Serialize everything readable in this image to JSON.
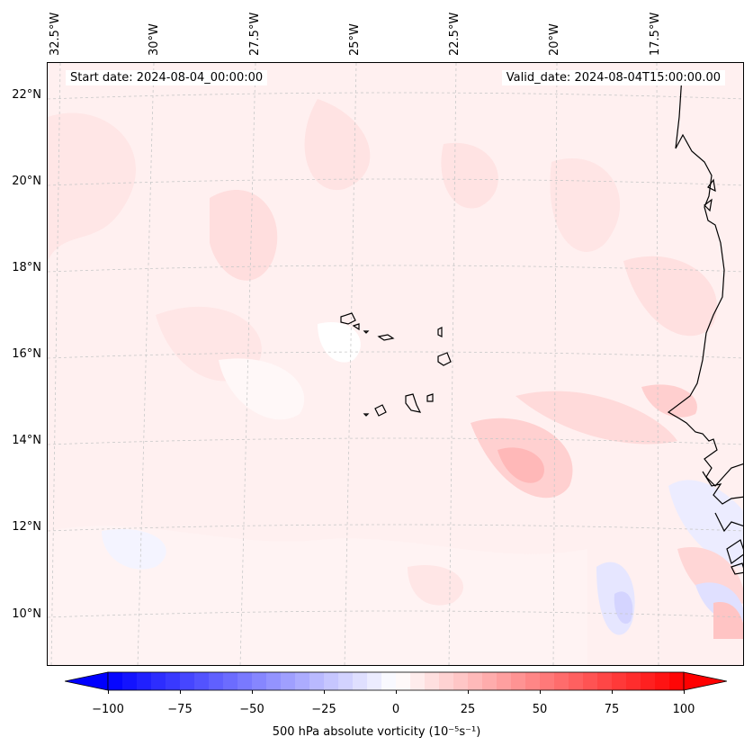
{
  "map": {
    "longitude_labels": [
      "32.5°W",
      "30°W",
      "27.5°W",
      "25°W",
      "22.5°W",
      "20°W",
      "17.5°W"
    ],
    "latitude_labels": [
      "22°N",
      "20°N",
      "18°N",
      "16°N",
      "14°N",
      "12°N",
      "10°N"
    ],
    "start_date": "Start date: 2024-08-04_00:00:00",
    "valid_date": "Valid_date: 2024-08-04T15:00:00.00",
    "field": "500 hPa absolute vorticity"
  },
  "colorbar": {
    "min": -100,
    "max": 100,
    "ticks": [
      "−100",
      "−75",
      "−50",
      "−25",
      "0",
      "25",
      "50",
      "75",
      "100"
    ],
    "label": "500 hPa absolute vorticity (10⁻⁵s⁻¹)",
    "low_color": "#0000ff",
    "mid_color": "#ffffff",
    "high_color": "#ff0000",
    "extend": "both"
  },
  "colors": {
    "coastline": "#000000",
    "gridline": "#c8c8c8",
    "background_tint": "#fff2f2"
  }
}
